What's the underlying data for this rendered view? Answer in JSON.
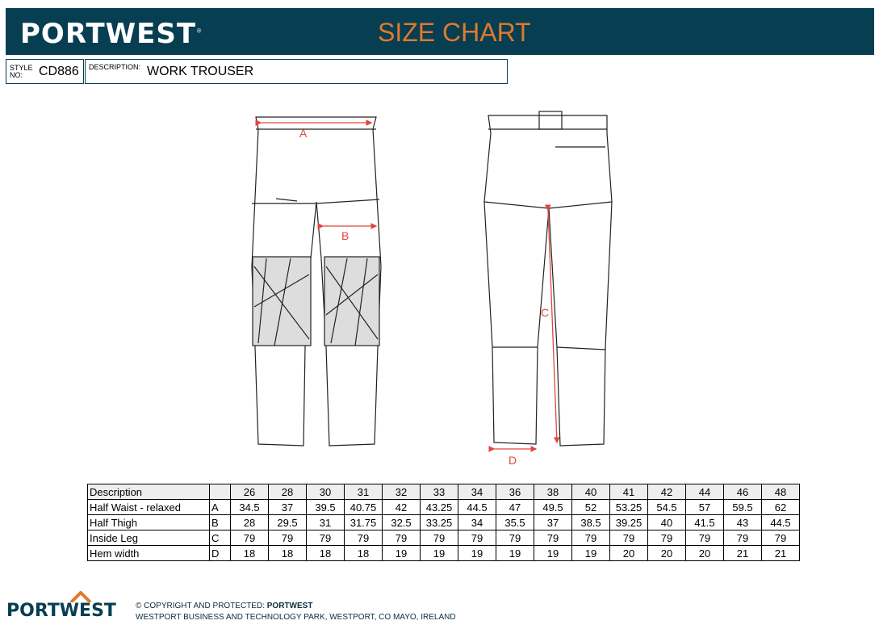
{
  "header": {
    "brand": "PORTWEST",
    "title": "SIZE CHART"
  },
  "info": {
    "style_label": "STYLE NO:",
    "style_value": "CD886",
    "description_label": "DESCRIPTION:",
    "description_value": "WORK TROUSER"
  },
  "diagram": {
    "labels": [
      "A",
      "B",
      "C",
      "D"
    ],
    "accent": "#e0463c"
  },
  "table": {
    "header": [
      "Description",
      "",
      "26",
      "28",
      "30",
      "31",
      "32",
      "33",
      "34",
      "36",
      "38",
      "40",
      "41",
      "42",
      "44",
      "46",
      "48"
    ],
    "rows": [
      [
        "Half Waist - relaxed",
        "A",
        "34.5",
        "37",
        "39.5",
        "40.75",
        "42",
        "43.25",
        "44.5",
        "47",
        "49.5",
        "52",
        "53.25",
        "54.5",
        "57",
        "59.5",
        "62"
      ],
      [
        "Half Thigh",
        "B",
        "28",
        "29.5",
        "31",
        "31.75",
        "32.5",
        "33.25",
        "34",
        "35.5",
        "37",
        "38.5",
        "39.25",
        "40",
        "41.5",
        "43",
        "44.5"
      ],
      [
        "Inside Leg",
        "C",
        "79",
        "79",
        "79",
        "79",
        "79",
        "79",
        "79",
        "79",
        "79",
        "79",
        "79",
        "79",
        "79",
        "79",
        "79"
      ],
      [
        "Hem width",
        "D",
        "18",
        "18",
        "18",
        "18",
        "19",
        "19",
        "19",
        "19",
        "19",
        "19",
        "20",
        "20",
        "20",
        "21",
        "21"
      ]
    ]
  },
  "footer": {
    "brand": "PORTWEST",
    "copyright_prefix": "© COPYRIGHT AND PROTECTED: ",
    "copyright_owner": "PORTWEST",
    "address": "WESTPORT BUSINESS AND TECHNOLOGY PARK, WESTPORT, CO MAYO, IRELAND"
  },
  "colors": {
    "header_bg": "#073e52",
    "title": "#e07a2c",
    "arrow": "#e0463c"
  }
}
